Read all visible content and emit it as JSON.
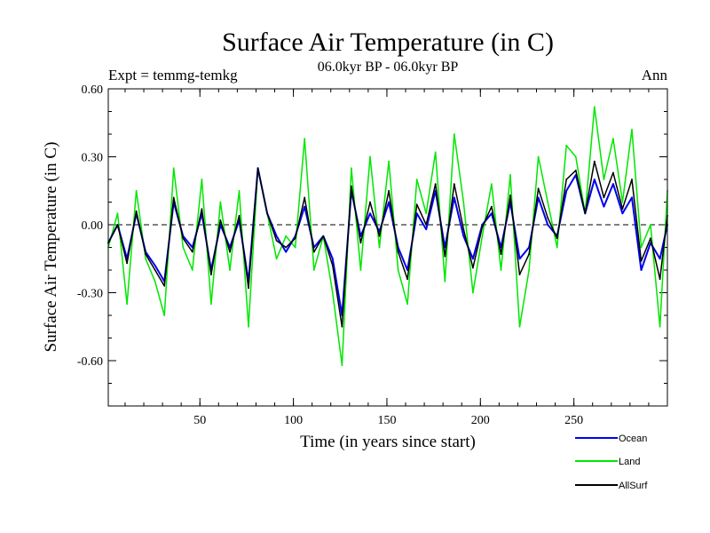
{
  "chart_data": {
    "type": "line",
    "title": "Surface Air Temperature (in C)",
    "subtitle": "06.0kyr BP - 06.0kyr BP",
    "left_label": "Expt = temmg-temkg",
    "right_label": "Ann",
    "xlabel": "Time (in years since start)",
    "ylabel": "Surface Air Temperature (in C)",
    "xlim": [
      1,
      300
    ],
    "ylim": [
      -0.8,
      0.6
    ],
    "x_ticks": [
      50,
      100,
      150,
      200,
      250
    ],
    "x_tick_labels": [
      "50",
      "100",
      "150",
      "200",
      "250"
    ],
    "y_ticks": [
      0.6,
      0.3,
      0.0,
      -0.3,
      -0.6
    ],
    "y_tick_labels": [
      "0.60",
      "0.30",
      "0.00",
      "-0.30",
      "-0.60"
    ],
    "zero_line": "dashed",
    "legend_position": "bottom-right",
    "series": [
      {
        "name": "Land",
        "color": "#00e600",
        "x": [
          1,
          6,
          11,
          16,
          21,
          26,
          31,
          36,
          41,
          46,
          51,
          56,
          61,
          66,
          71,
          76,
          81,
          86,
          91,
          96,
          101,
          106,
          111,
          116,
          121,
          126,
          131,
          136,
          141,
          146,
          151,
          156,
          161,
          166,
          171,
          176,
          181,
          186,
          191,
          196,
          201,
          206,
          211,
          216,
          221,
          226,
          231,
          236,
          241,
          246,
          251,
          256,
          261,
          266,
          271,
          276,
          281,
          286,
          291,
          296,
          300
        ],
        "values": [
          -0.1,
          0.05,
          -0.35,
          0.15,
          -0.15,
          -0.25,
          -0.4,
          0.25,
          -0.1,
          -0.2,
          0.2,
          -0.35,
          0.1,
          -0.2,
          0.15,
          -0.45,
          0.25,
          0.05,
          -0.15,
          -0.05,
          -0.1,
          0.38,
          -0.2,
          -0.05,
          -0.3,
          -0.62,
          0.25,
          -0.2,
          0.3,
          -0.1,
          0.28,
          -0.2,
          -0.35,
          0.2,
          0.05,
          0.32,
          -0.25,
          0.4,
          0.1,
          -0.3,
          -0.05,
          0.18,
          -0.2,
          0.22,
          -0.45,
          -0.2,
          0.3,
          0.1,
          -0.1,
          0.35,
          0.3,
          0.05,
          0.52,
          0.2,
          0.38,
          0.1,
          0.42,
          -0.1,
          0.0,
          -0.45,
          0.15
        ]
      },
      {
        "name": "Ocean",
        "color": "#0000ee",
        "x": [
          1,
          6,
          11,
          16,
          21,
          26,
          31,
          36,
          41,
          46,
          51,
          56,
          61,
          66,
          71,
          76,
          81,
          86,
          91,
          96,
          101,
          106,
          111,
          116,
          121,
          126,
          131,
          136,
          141,
          146,
          151,
          156,
          161,
          166,
          171,
          176,
          181,
          186,
          191,
          196,
          201,
          206,
          211,
          216,
          221,
          226,
          231,
          236,
          241,
          246,
          251,
          256,
          261,
          266,
          271,
          276,
          281,
          286,
          291,
          296,
          300
        ],
        "values": [
          -0.08,
          0.0,
          -0.15,
          0.05,
          -0.12,
          -0.18,
          -0.25,
          0.1,
          -0.05,
          -0.1,
          0.05,
          -0.2,
          0.0,
          -0.1,
          0.02,
          -0.25,
          0.25,
          0.05,
          -0.05,
          -0.12,
          -0.05,
          0.08,
          -0.1,
          -0.05,
          -0.15,
          -0.4,
          0.15,
          -0.05,
          0.05,
          -0.03,
          0.1,
          -0.1,
          -0.2,
          0.05,
          -0.02,
          0.15,
          -0.1,
          0.12,
          -0.05,
          -0.15,
          0.0,
          0.05,
          -0.1,
          0.1,
          -0.15,
          -0.1,
          0.12,
          0.0,
          -0.05,
          0.15,
          0.22,
          0.05,
          0.2,
          0.08,
          0.18,
          0.05,
          0.12,
          -0.2,
          -0.08,
          -0.15,
          0.0
        ]
      },
      {
        "name": "AllSurf",
        "color": "#000000",
        "x": [
          1,
          6,
          11,
          16,
          21,
          26,
          31,
          36,
          41,
          46,
          51,
          56,
          61,
          66,
          71,
          76,
          81,
          86,
          91,
          96,
          101,
          106,
          111,
          116,
          121,
          126,
          131,
          136,
          141,
          146,
          151,
          156,
          161,
          166,
          171,
          176,
          181,
          186,
          191,
          196,
          201,
          206,
          211,
          216,
          221,
          226,
          231,
          236,
          241,
          246,
          251,
          256,
          261,
          266,
          271,
          276,
          281,
          286,
          291,
          296,
          300
        ],
        "values": [
          -0.08,
          0.0,
          -0.17,
          0.06,
          -0.13,
          -0.2,
          -0.27,
          0.12,
          -0.06,
          -0.12,
          0.07,
          -0.22,
          0.02,
          -0.12,
          0.04,
          -0.28,
          0.25,
          0.05,
          -0.07,
          -0.1,
          -0.06,
          0.12,
          -0.12,
          -0.05,
          -0.18,
          -0.45,
          0.17,
          -0.08,
          0.1,
          -0.05,
          0.15,
          -0.12,
          -0.24,
          0.09,
          0.0,
          0.18,
          -0.14,
          0.18,
          -0.02,
          -0.19,
          -0.01,
          0.08,
          -0.13,
          0.13,
          -0.22,
          -0.13,
          0.16,
          0.03,
          -0.06,
          0.2,
          0.24,
          0.05,
          0.28,
          0.12,
          0.23,
          0.07,
          0.2,
          -0.16,
          -0.06,
          -0.24,
          0.04
        ]
      }
    ]
  }
}
